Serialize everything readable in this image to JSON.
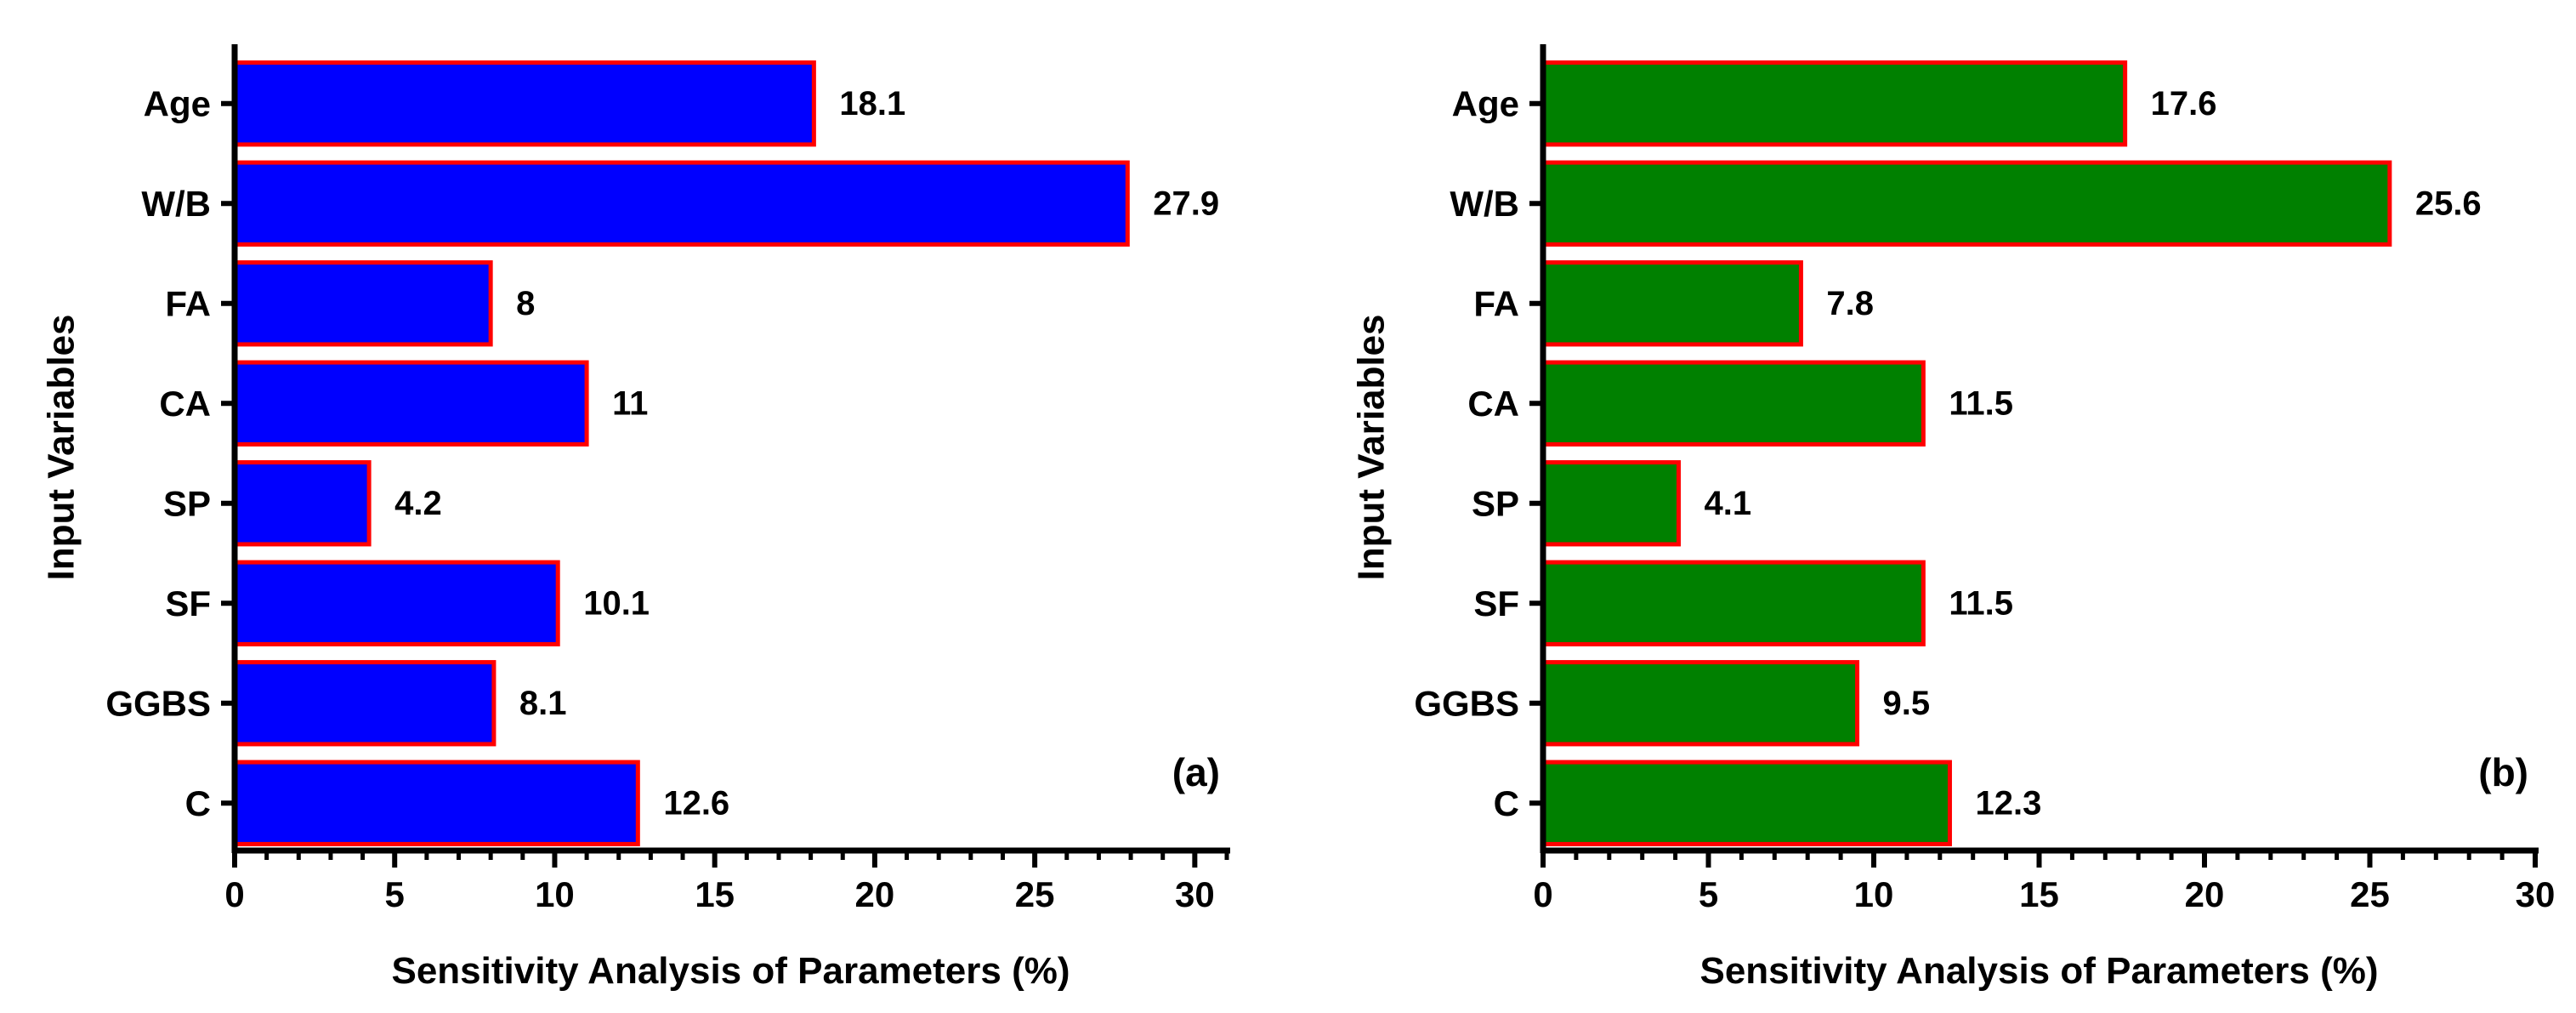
{
  "chart_data": [
    {
      "type": "bar",
      "orientation": "horizontal",
      "panel_label": "(a)",
      "categories": [
        "Age",
        "W/B",
        "FA",
        "CA",
        "SP",
        "SF",
        "GGBS",
        "C"
      ],
      "values": [
        18.1,
        27.9,
        8,
        11,
        4.2,
        10.1,
        8.1,
        12.6
      ],
      "value_labels": [
        "18.1",
        "27.9",
        "8",
        "11",
        "4.2",
        "10.1",
        "8.1",
        "12.6"
      ],
      "xlabel": "Sensitivity Analysis of Parameters (%)",
      "ylabel": "Input Variables",
      "xlim": [
        0,
        31
      ],
      "xticks": [
        0,
        5,
        10,
        15,
        20,
        25,
        30
      ],
      "xtick_labels": [
        "0",
        "5",
        "10",
        "15",
        "20",
        "25",
        "30"
      ],
      "bar_color": "#0000ff",
      "edge_color": "#ff0000",
      "grid": false
    },
    {
      "type": "bar",
      "orientation": "horizontal",
      "panel_label": "(b)",
      "categories": [
        "Age",
        "W/B",
        "FA",
        "CA",
        "SP",
        "SF",
        "GGBS",
        "C"
      ],
      "values": [
        17.6,
        25.6,
        7.8,
        11.5,
        4.1,
        11.5,
        9.5,
        12.3
      ],
      "value_labels": [
        "17.6",
        "25.6",
        "7.8",
        "11.5",
        "4.1",
        "11.5",
        "9.5",
        "12.3"
      ],
      "xlabel": "Sensitivity Analysis of Parameters (%)",
      "ylabel": "Input Variables",
      "xlim": [
        0,
        30
      ],
      "xticks": [
        0,
        5,
        10,
        15,
        20,
        25,
        30
      ],
      "xtick_labels": [
        "0",
        "5",
        "10",
        "15",
        "20",
        "25",
        "30"
      ],
      "bar_color": "#008000",
      "edge_color": "#ff0000",
      "grid": false
    }
  ]
}
